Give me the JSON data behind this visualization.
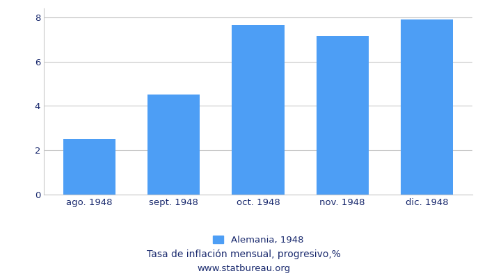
{
  "categories": [
    "ago. 1948",
    "sept. 1948",
    "oct. 1948",
    "nov. 1948",
    "dic. 1948"
  ],
  "values": [
    2.5,
    4.5,
    7.65,
    7.15,
    7.9
  ],
  "bar_color": "#4d9ef5",
  "ylim": [
    0,
    8.4
  ],
  "yticks": [
    0,
    2,
    4,
    6,
    8
  ],
  "legend_label": "Alemania, 1948",
  "subtitle": "Tasa de inflación mensual, progresivo,%",
  "source": "www.statbureau.org",
  "background_color": "#ffffff",
  "grid_color": "#c8c8c8",
  "bar_width": 0.62,
  "tick_fontsize": 9.5,
  "legend_fontsize": 9.5,
  "subtitle_fontsize": 10,
  "source_fontsize": 9.5,
  "text_color": "#1a2a6e"
}
